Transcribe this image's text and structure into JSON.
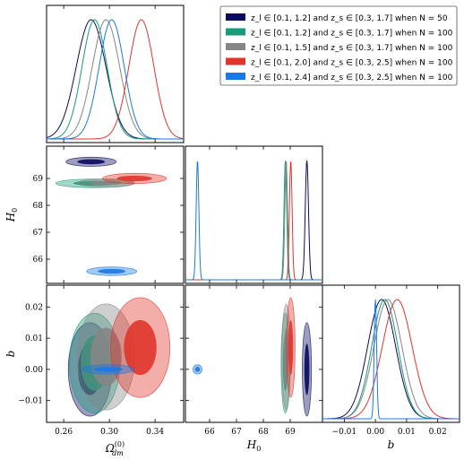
{
  "chart_data": {
    "type": "corner-triangle",
    "series": [
      {
        "name": "z_l ∈ [0.1, 1.2] and z_s ∈ [0.3, 1.7] when N = 50",
        "color": "#0a0a5e",
        "omega": {
          "mean": 0.284,
          "sd": 0.013
        },
        "H0": {
          "mean": 69.62,
          "sd": 0.06
        },
        "b": {
          "mean": 0.002,
          "sd": 0.0045
        },
        "ellipse_omega_H0": {
          "cx": 0.284,
          "cy": 69.62,
          "rx": 0.022,
          "ry": 0.17
        },
        "ellipse_omega_b": {
          "cx": 0.283,
          "cy": 0.0,
          "rx": 0.019,
          "ry": 0.015
        },
        "ellipse_H0_b": {
          "cx": 69.62,
          "cy": 0.0,
          "rx": 0.17,
          "ry": 0.015
        }
      },
      {
        "name": "z_l ∈ [0.1, 1.2] and z_s ∈ [0.3, 1.7] when N = 100",
        "color": "#199a78",
        "omega": {
          "mean": 0.287,
          "sd": 0.011
        },
        "H0": {
          "mean": 68.82,
          "sd": 0.05
        },
        "b": {
          "mean": 0.003,
          "sd": 0.0042
        },
        "ellipse_omega_H0": {
          "cx": 0.287,
          "cy": 68.82,
          "rx": 0.034,
          "ry": 0.16
        },
        "ellipse_omega_b": {
          "cx": 0.287,
          "cy": 0.002,
          "rx": 0.022,
          "ry": 0.016
        },
        "ellipse_H0_b": {
          "cx": 68.82,
          "cy": 0.002,
          "rx": 0.16,
          "ry": 0.016
        }
      },
      {
        "name": "z_l ∈ [0.1, 1.5] and z_s ∈ [0.3, 1.7] when N = 100",
        "color": "#868686",
        "omega": {
          "mean": 0.297,
          "sd": 0.012
        },
        "H0": {
          "mean": 68.85,
          "sd": 0.05
        },
        "b": {
          "mean": 0.004,
          "sd": 0.0045
        },
        "ellipse_omega_H0": {
          "cx": 0.297,
          "cy": 68.83,
          "rx": 0.025,
          "ry": 0.15
        },
        "ellipse_omega_b": {
          "cx": 0.297,
          "cy": 0.004,
          "rx": 0.025,
          "ry": 0.017
        },
        "ellipse_H0_b": {
          "cx": 68.85,
          "cy": 0.004,
          "rx": 0.16,
          "ry": 0.017
        }
      },
      {
        "name": "z_l ∈ [0.1, 2.0] and z_s ∈ [0.3, 2.5] when N = 100",
        "color": "#e0352b",
        "omega": {
          "mean": 0.328,
          "sd": 0.011
        },
        "H0": {
          "mean": 69.02,
          "sd": 0.05
        },
        "b": {
          "mean": 0.007,
          "sd": 0.0048
        },
        "ellipse_omega_H0": {
          "cx": 0.322,
          "cy": 69.0,
          "rx": 0.028,
          "ry": 0.19
        },
        "ellipse_omega_b": {
          "cx": 0.327,
          "cy": 0.007,
          "rx": 0.026,
          "ry": 0.016
        },
        "ellipse_H0_b": {
          "cx": 69.02,
          "cy": 0.007,
          "rx": 0.16,
          "ry": 0.016
        }
      },
      {
        "name": "z_l ∈ [0.1, 2.4] and z_s ∈ [0.3, 2.5] when N = 100",
        "color": "#1a78e6",
        "omega": {
          "mean": 0.302,
          "sd": 0.011
        },
        "H0": {
          "mean": 65.55,
          "sd": 0.05
        },
        "b": {
          "mean": 0.0,
          "sd": 0.0004
        },
        "ellipse_omega_H0": {
          "cx": 0.302,
          "cy": 65.55,
          "rx": 0.022,
          "ry": 0.16
        },
        "ellipse_omega_b": {
          "cx": 0.299,
          "cy": 0.0,
          "rx": 0.023,
          "ry": 0.0015
        },
        "ellipse_H0_b": {
          "cx": 65.55,
          "cy": 0.0,
          "rx": 0.17,
          "ry": 0.0015
        }
      }
    ],
    "axes": {
      "omega": {
        "label": "Ω_dm^(0)",
        "range": [
          0.245,
          0.365
        ],
        "ticks": [
          0.26,
          0.3,
          0.34
        ],
        "tick_labels": [
          "0.26",
          "0.30",
          "0.34"
        ]
      },
      "H0": {
        "label": "H_0",
        "range": [
          65.1,
          70.2
        ],
        "ticks": [
          66,
          67,
          68,
          69
        ],
        "tick_labels": [
          "66",
          "67",
          "68",
          "69"
        ]
      },
      "H0_y": {
        "ticks": [
          66,
          67,
          68,
          69
        ],
        "tick_labels": [
          "66",
          "67",
          "68",
          "69"
        ]
      },
      "b": {
        "label": "b",
        "range": [
          -0.017,
          0.027
        ],
        "ticks": [
          -0.01,
          0.0,
          0.01,
          0.02
        ],
        "tick_labels": [
          "−0.01",
          "0.00",
          "0.01",
          "0.02"
        ]
      }
    },
    "legend_placement": "top-right"
  }
}
